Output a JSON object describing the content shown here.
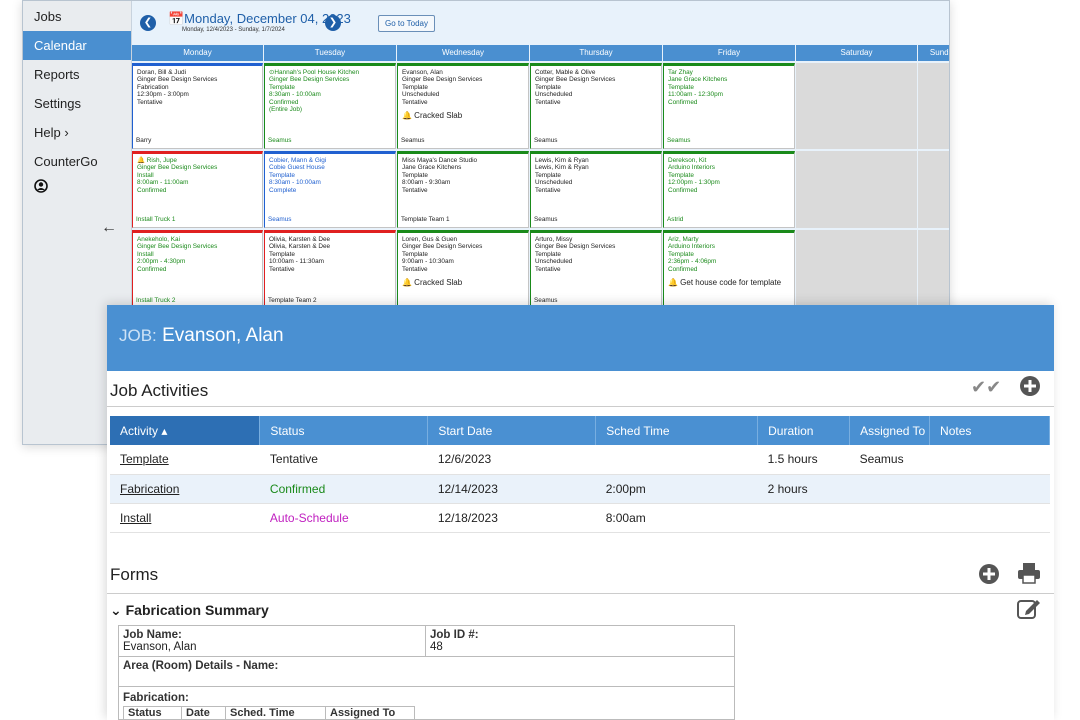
{
  "sidebar": {
    "items": [
      {
        "label": "Jobs"
      },
      {
        "label": "Calendar"
      },
      {
        "label": "Reports"
      },
      {
        "label": "Settings"
      },
      {
        "label": "Help ›"
      },
      {
        "label": "CounterGo"
      }
    ]
  },
  "calendar": {
    "date_title": "📅Monday, December 04, 2023",
    "date_range": "Monday, 12/4/2023 - Sunday, 1/7/2024",
    "go_today": "Go to Today",
    "days": [
      "Monday",
      "Tuesday",
      "Wednesday",
      "Thursday",
      "Friday",
      "Saturday",
      "Sunday"
    ],
    "cells": [
      [
        {
          "l": [
            "Doran, Bill & Judi",
            "Ginger Bee Design Services",
            "Fabrication",
            "12:30pm - 3:00pm",
            "Tentative"
          ],
          "who": "Barry"
        },
        {
          "l": [
            "⊙Hannah's Pool House Kitchen",
            "Ginger Bee Design Services",
            "Template",
            "8:30am - 10:00am",
            "Confirmed",
            "(Entire Job)"
          ],
          "who": "Seamus"
        },
        {
          "l": [
            "Evanson, Alan",
            "Ginger Bee Design Services",
            "Template",
            "Unscheduled",
            "Tentative"
          ],
          "alert": "🔔 Cracked Slab",
          "who": "Seamus"
        },
        {
          "l": [
            "Cotter, Mable & Olive",
            "Ginger Bee Design Services",
            "Template",
            "Unscheduled",
            "Tentative"
          ],
          "who": "Seamus"
        },
        {
          "l": [
            "Tar Zhay",
            "Jane Grace Kitchens",
            "Template",
            "11:00am - 12:30pm",
            "Confirmed"
          ],
          "who": "Seamus"
        }
      ],
      [
        {
          "l": [
            "🔔 Rish, Jupe",
            "Ginger Bee Design Services",
            "Install",
            "8:00am - 11:00am",
            "Confirmed"
          ],
          "who": "Install Truck 1"
        },
        {
          "l": [
            "Cobier, Mann & Gigi",
            "Cobie Guest House",
            "Template",
            "8:30am - 10:00am",
            "Complete"
          ],
          "who": "Seamus"
        },
        {
          "l": [
            "Miss Maya's Dance Studio",
            "Jane Grace Kitchens",
            "Template",
            "8:00am - 9:30am",
            "Tentative"
          ],
          "who": "Template Team 1"
        },
        {
          "l": [
            "Lewis, Kim & Ryan",
            "Lewis, Kim & Ryan",
            "Template",
            "Unscheduled",
            "Tentative"
          ],
          "who": "Seamus"
        },
        {
          "l": [
            "Derekson, Kit",
            "Arduino Interiors",
            "Template",
            "12:00pm - 1:30pm",
            "Confirmed"
          ],
          "who": "Astrid"
        }
      ],
      [
        {
          "l": [
            "Anekeholo, Kai",
            "Ginger Bee Design Services",
            "Install",
            "2:00pm - 4:30pm",
            "Confirmed"
          ],
          "who": "Install Truck 2"
        },
        {
          "l": [
            "Olivia, Karsten & Dee",
            "Olivia, Karsten & Dee",
            "Template",
            "10:00am - 11:30am",
            "Tentative"
          ],
          "who": "Template Team 2"
        },
        {
          "l": [
            "Loren, Gus & Guen",
            "Ginger Bee Design Services",
            "Template",
            "9:00am - 10:30am",
            "Tentative"
          ],
          "alert": "🔔 Cracked Slab",
          "who": ""
        },
        {
          "l": [
            "Arturo, Missy",
            "Ginger Bee Design Services",
            "Template",
            "Unscheduled",
            "Tentative"
          ],
          "who": "Seamus"
        },
        {
          "l": [
            "Ariz, Marty",
            "Arduino Interiors",
            "Template",
            "2:36pm - 4:06pm",
            "Confirmed"
          ],
          "alert": "🔔 Get house code for template",
          "who": ""
        }
      ]
    ],
    "colors": {
      "green": "#1a8a1a",
      "red": "#e02020",
      "blue": "#2060d0",
      "header": "#4a8fd0"
    }
  },
  "job": {
    "label": "JOB:",
    "name": "Evanson, Alan"
  },
  "activities": {
    "title": "Job Activities",
    "columns": [
      "Activity ▴",
      "Status",
      "Start Date",
      "Sched Time",
      "Duration",
      "Assigned To",
      "Notes"
    ],
    "rows": [
      {
        "activity": "Template",
        "status": "Tentative",
        "start": "12/6/2023",
        "time": "",
        "duration": "1.5 hours",
        "assigned": "Seamus",
        "notes": ""
      },
      {
        "activity": "Fabrication",
        "status": "Confirmed",
        "start": "12/14/2023",
        "time": "2:00pm",
        "duration": "2 hours",
        "assigned": "",
        "notes": ""
      },
      {
        "activity": "Install",
        "status": "Auto-Schedule",
        "start": "12/18/2023",
        "time": "8:00am",
        "duration": "",
        "assigned": "",
        "notes": ""
      }
    ]
  },
  "forms": {
    "title": "Forms",
    "summary_title": "Fabrication Summary",
    "job_name_label": "Job Name:",
    "job_name": "Evanson, Alan",
    "job_id_label": "Job ID #:",
    "job_id": "48",
    "area_label": "Area (Room) Details - Name:",
    "fab_label": "Fabrication:",
    "sub_cols": [
      "Status",
      "Date",
      "Sched. Time",
      "Assigned To"
    ]
  }
}
